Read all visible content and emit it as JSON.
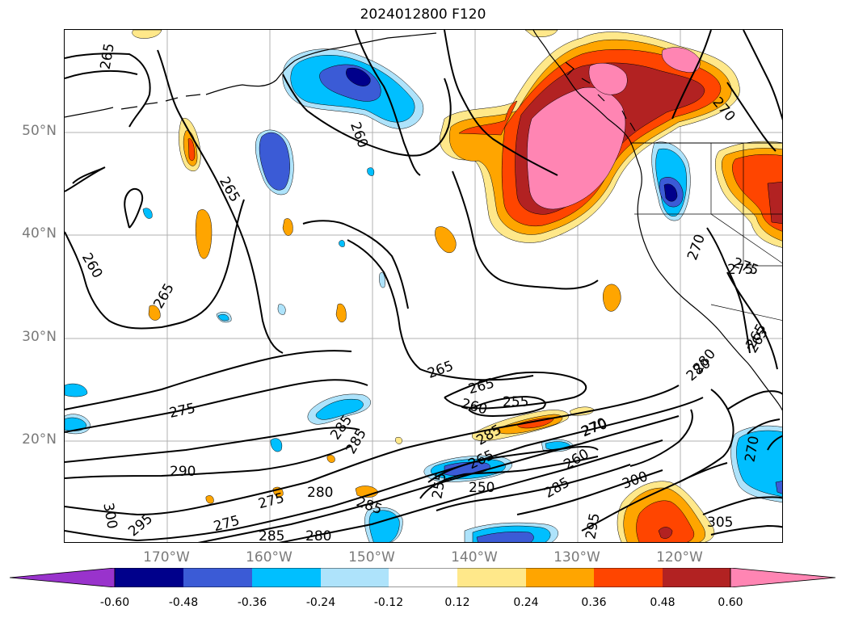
{
  "title": "2024012800 F120",
  "lat_labels": [
    "50°N",
    "40°N",
    "30°N",
    "20°N"
  ],
  "lon_labels": [
    "170°W",
    "160°W",
    "150°W",
    "140°W",
    "130°W",
    "120°W"
  ],
  "contour_labels": [
    "265",
    "265",
    "265",
    "265",
    "260",
    "260",
    "260",
    "255",
    "265",
    "270",
    "275",
    "275",
    "270",
    "280",
    "285",
    "285",
    "285",
    "285",
    "250",
    "255",
    "260",
    "265",
    "270",
    "275",
    "275",
    "275",
    "280",
    "280",
    "280",
    "285",
    "285",
    "290",
    "295",
    "295",
    "300",
    "300",
    "305",
    "270",
    "265",
    "265",
    "270"
  ],
  "colorbar": {
    "ticks": [
      "-0.60",
      "-0.48",
      "-0.36",
      "-0.24",
      "-0.12",
      "0.12",
      "0.24",
      "0.36",
      "0.48",
      "0.60"
    ],
    "colors": [
      "#9933cc",
      "#00008b",
      "#3b5bd6",
      "#00bfff",
      "#aee3fb",
      "#ffffff",
      "#ffe88a",
      "#ffa500",
      "#ff4500",
      "#b22222",
      "#ff85b3"
    ]
  }
}
